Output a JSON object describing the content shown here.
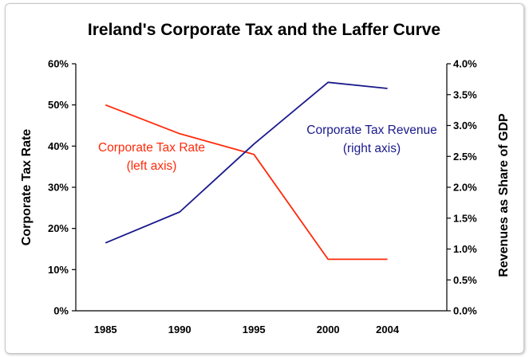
{
  "chart_data": {
    "type": "line",
    "title": "Ireland's Corporate Tax and the Laffer Curve",
    "categories": [
      "1985",
      "1990",
      "1995",
      "2000",
      "2004"
    ],
    "x": [
      1985,
      1990,
      1995,
      2000,
      2004
    ],
    "left_axis": {
      "label": "Corporate Tax Rate",
      "ticks": [
        "0%",
        "10%",
        "20%",
        "30%",
        "40%",
        "50%",
        "60%"
      ],
      "ylim": [
        0,
        60
      ]
    },
    "right_axis": {
      "label": "Revenues as Share of GDP",
      "ticks": [
        "0.0%",
        "0.5%",
        "1.0%",
        "1.5%",
        "2.0%",
        "2.5%",
        "3.0%",
        "3.5%",
        "4.0%"
      ],
      "ylim": [
        0,
        4.0
      ]
    },
    "series": [
      {
        "name": "Corporate Tax Rate",
        "axis": "left",
        "color": "#ff2a0a",
        "annotation": [
          "Corporate Tax Rate",
          "(left axis)"
        ],
        "values": [
          50,
          43,
          38,
          12.5,
          12.5
        ]
      },
      {
        "name": "Corporate Tax Revenue",
        "axis": "right",
        "color": "#1a1a8c",
        "annotation": [
          "Corporate Tax Revenue",
          "(right axis)"
        ],
        "values": [
          1.1,
          1.6,
          2.7,
          3.7,
          3.6
        ]
      }
    ],
    "grid": false,
    "legend": "inline annotations"
  }
}
